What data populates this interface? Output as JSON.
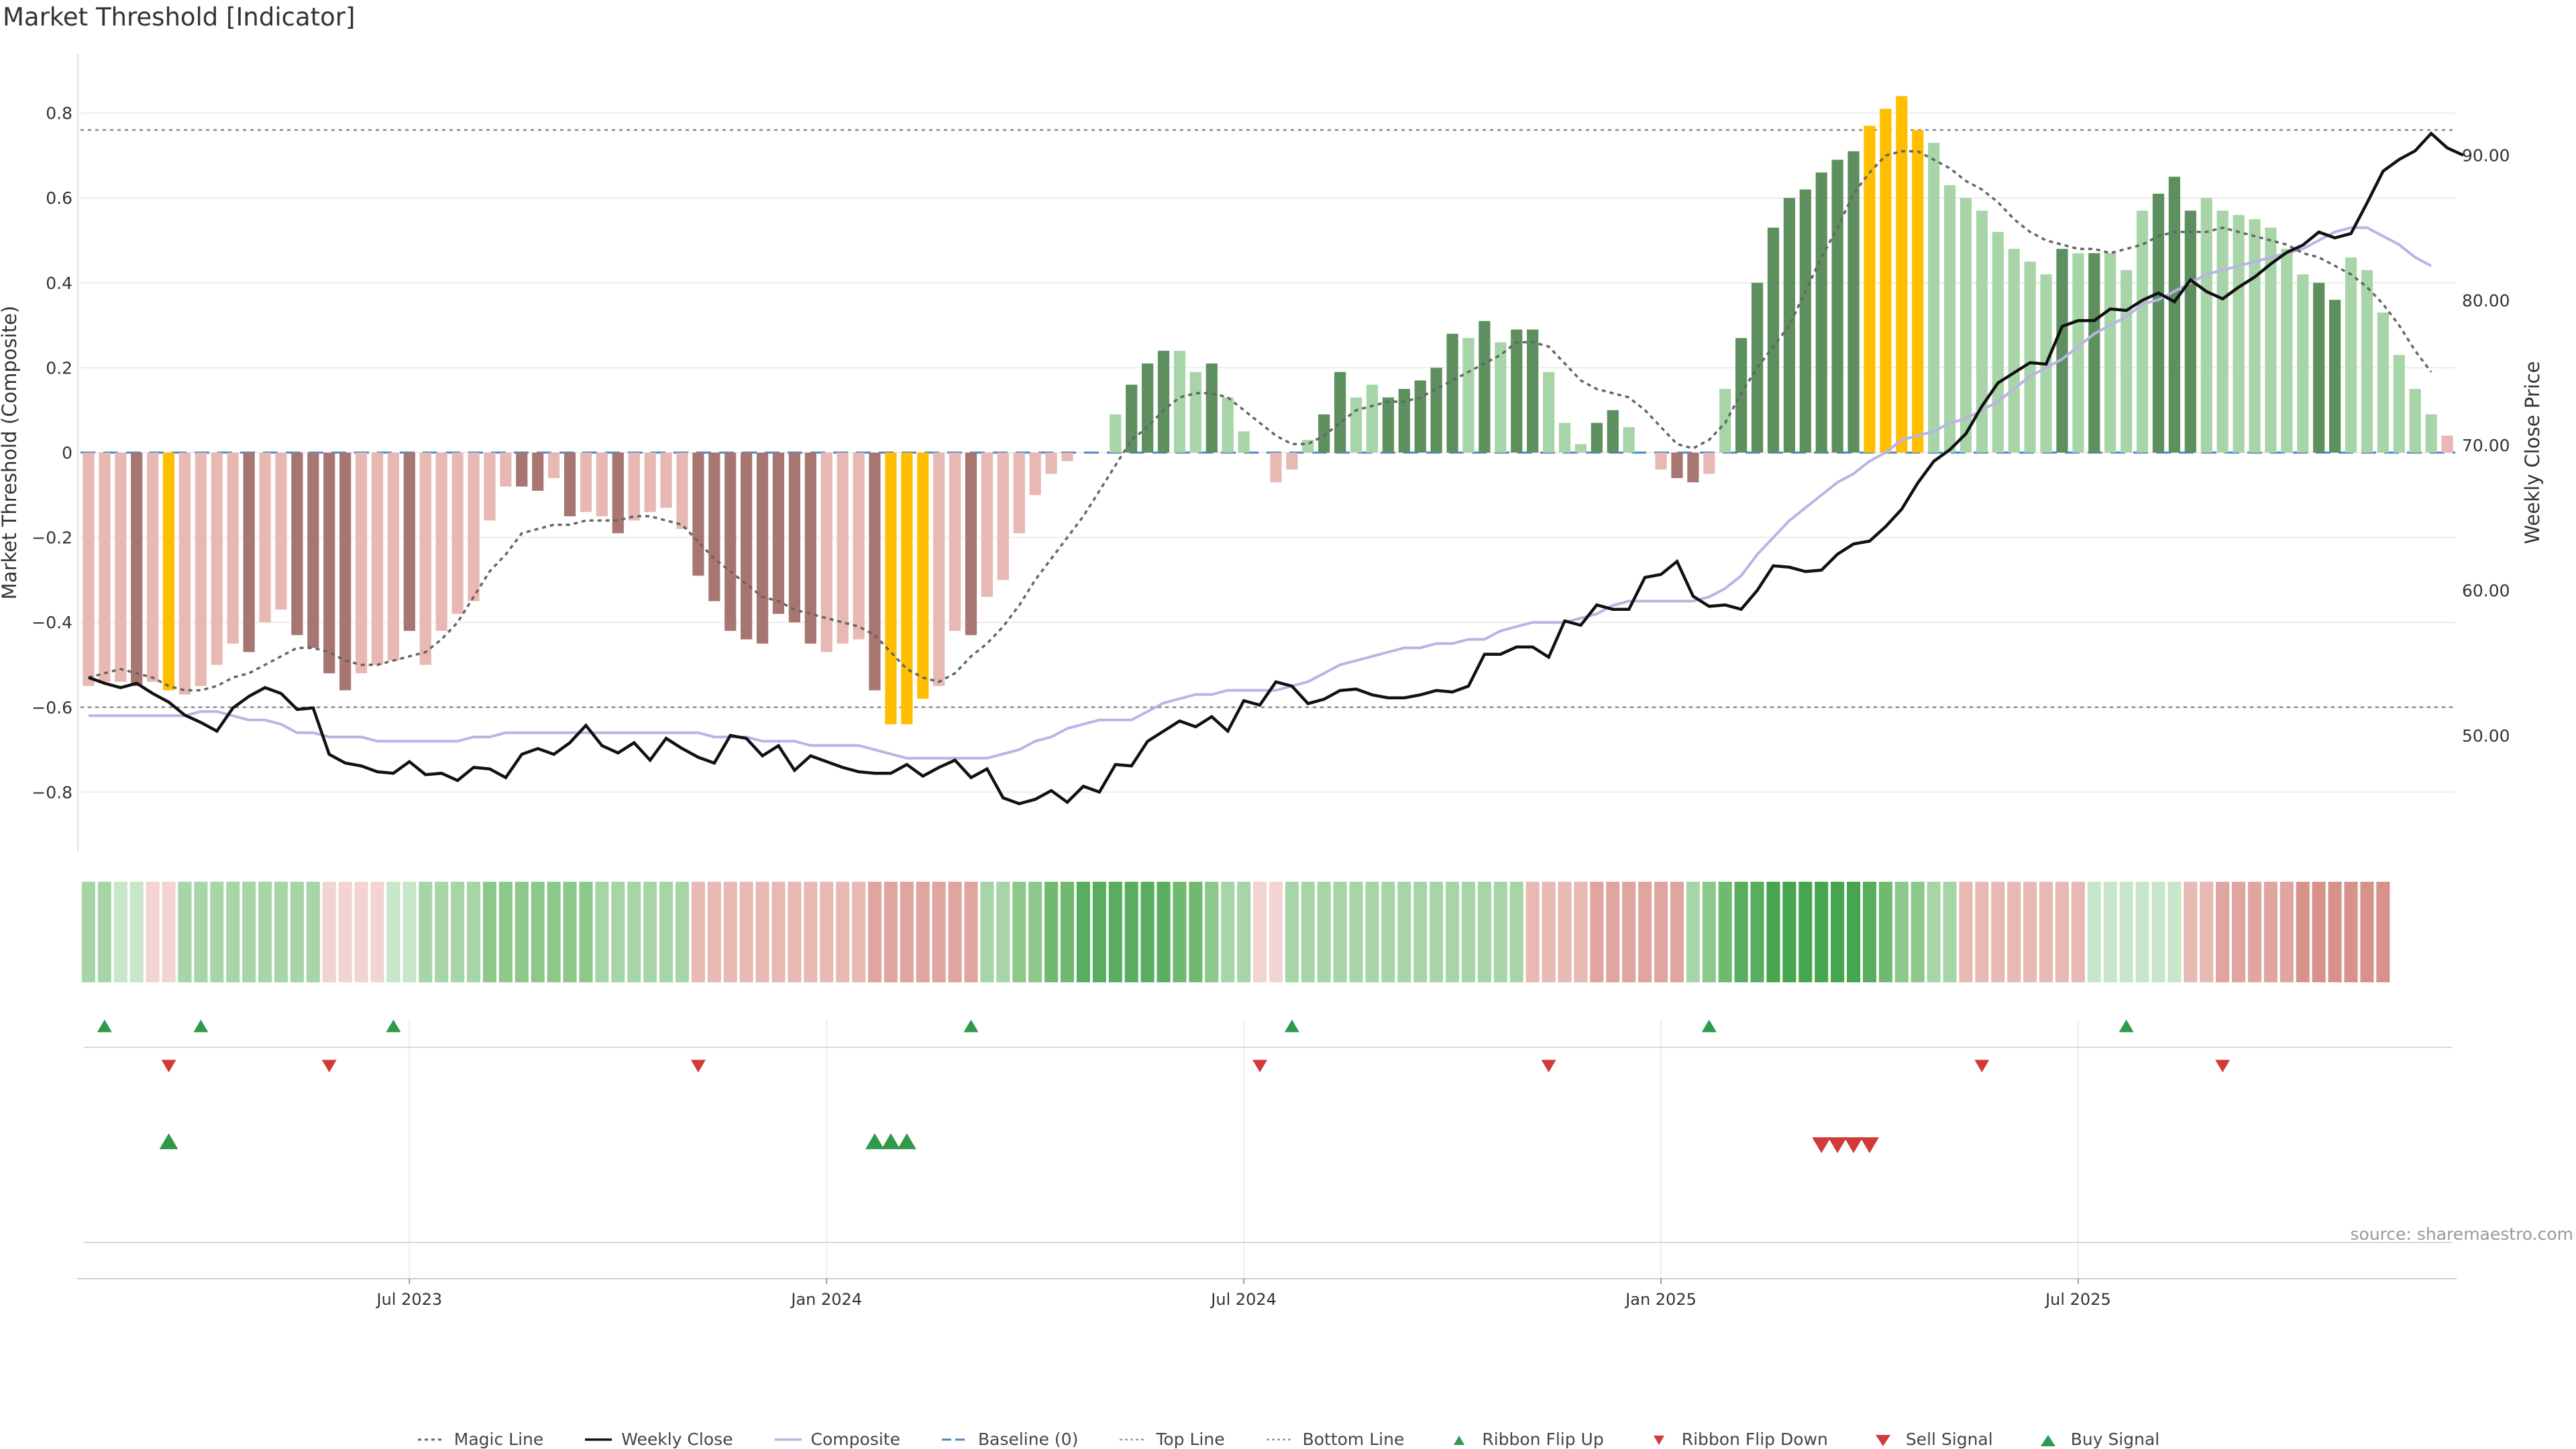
{
  "title": "Market Threshold [Indicator]",
  "source": "source: sharemaestro.com",
  "colors": {
    "dark_green": "#5e8f5e",
    "light_green": "#a8d5a8",
    "dark_red": "#a87670",
    "light_red": "#e8b8b3",
    "gold": "#ffbf00",
    "close": "#111111",
    "composite": "#b9b4e3",
    "magic": "#666666",
    "baseline": "#4a86c5",
    "buy": "#2e9a4a",
    "sell": "#d23a3a"
  },
  "chart_data": {
    "type": "bar",
    "title": "Market Threshold [Indicator]",
    "ylabel": "Market Threshold (Composite)",
    "ylabel_right": "Weekly Close Price",
    "ylim": [
      -0.94,
      0.94
    ],
    "ylim_right": [
      42.0,
      97.0
    ],
    "yticks": [
      "0.8",
      "0.6",
      "0.4",
      "0.2",
      "0",
      "−0.2",
      "−0.4",
      "−0.6",
      "−0.8"
    ],
    "yticks_right": [
      "90.00",
      "80.00",
      "70.00",
      "60.00",
      "50.00"
    ],
    "xticks": [
      "Jul 2023",
      "Jan 2024",
      "Jul 2024",
      "Jan 2025",
      "Jul 2025"
    ],
    "xtick_weeks": [
      20,
      46,
      72,
      98,
      124
    ],
    "top_line": 0.76,
    "bottom_line": -0.6,
    "baseline": 0,
    "bars": [
      -0.55,
      -0.54,
      -0.54,
      -0.55,
      -0.54,
      -0.56,
      -0.57,
      -0.55,
      -0.5,
      -0.45,
      -0.47,
      -0.4,
      -0.37,
      -0.43,
      -0.46,
      -0.52,
      -0.56,
      -0.52,
      -0.5,
      -0.49,
      -0.42,
      -0.5,
      -0.42,
      -0.38,
      -0.35,
      -0.16,
      -0.08,
      -0.08,
      -0.09,
      -0.06,
      -0.15,
      -0.14,
      -0.15,
      -0.19,
      -0.16,
      -0.14,
      -0.13,
      -0.18,
      -0.29,
      -0.35,
      -0.42,
      -0.44,
      -0.45,
      -0.38,
      -0.4,
      -0.45,
      -0.47,
      -0.45,
      -0.44,
      -0.56,
      -0.64,
      -0.64,
      -0.58,
      -0.55,
      -0.42,
      -0.43,
      -0.34,
      -0.3,
      -0.19,
      -0.1,
      -0.05,
      -0.02,
      0,
      0,
      0.09,
      0.16,
      0.21,
      0.24,
      0.24,
      0.19,
      0.21,
      0.13,
      0.05,
      0,
      -0.07,
      -0.04,
      0.03,
      0.09,
      0.19,
      0.13,
      0.16,
      0.13,
      0.15,
      0.17,
      0.2,
      0.28,
      0.27,
      0.31,
      0.26,
      0.29,
      0.29,
      0.19,
      0.07,
      0.02,
      0.07,
      0.1,
      0.06,
      0,
      -0.04,
      -0.06,
      -0.07,
      -0.05,
      0.15,
      0.27,
      0.4,
      0.53,
      0.6,
      0.62,
      0.66,
      0.69,
      0.71,
      0.77,
      0.81,
      0.84,
      0.76,
      0.73,
      0.63,
      0.6,
      0.57,
      0.52,
      0.48,
      0.45,
      0.42,
      0.48,
      0.47,
      0.47,
      0.47,
      0.43,
      0.57,
      0.61,
      0.65,
      0.57,
      0.6,
      0.57,
      0.56,
      0.55,
      0.53,
      0.48,
      0.42,
      0.4,
      0.36,
      0.46,
      0.43,
      0.33,
      0.23,
      0.15,
      0.09,
      0.04
    ],
    "bar_kind": [
      "lr",
      "lr",
      "lr",
      "dr",
      "lr",
      "g",
      "lr",
      "lr",
      "lr",
      "lr",
      "dr",
      "lr",
      "lr",
      "dr",
      "dr",
      "dr",
      "dr",
      "lr",
      "lr",
      "lr",
      "dr",
      "lr",
      "lr",
      "lr",
      "lr",
      "lr",
      "lr",
      "dr",
      "dr",
      "lr",
      "dr",
      "lr",
      "lr",
      "dr",
      "lr",
      "lr",
      "lr",
      "lr",
      "dr",
      "dr",
      "dr",
      "dr",
      "dr",
      "dr",
      "dr",
      "dr",
      "lr",
      "lr",
      "lr",
      "dr",
      "g",
      "g",
      "g",
      "lr",
      "lr",
      "dr",
      "lr",
      "lr",
      "lr",
      "lr",
      "lr",
      "lr",
      "lr",
      "lr",
      "lg",
      "dg",
      "dg",
      "dg",
      "lg",
      "lg",
      "dg",
      "lg",
      "lg",
      "lr",
      "lr",
      "lr",
      "lg",
      "dg",
      "dg",
      "lg",
      "lg",
      "dg",
      "dg",
      "dg",
      "dg",
      "dg",
      "lg",
      "dg",
      "lg",
      "dg",
      "dg",
      "lg",
      "lg",
      "lg",
      "dg",
      "dg",
      "lg",
      "lr",
      "lr",
      "dr",
      "dr",
      "lr",
      "lg",
      "dg",
      "dg",
      "dg",
      "dg",
      "dg",
      "dg",
      "dg",
      "dg",
      "g",
      "g",
      "g",
      "g",
      "lg",
      "lg",
      "lg",
      "lg",
      "lg",
      "lg",
      "lg",
      "lg",
      "dg",
      "lg",
      "dg",
      "lg",
      "lg",
      "lg",
      "dg",
      "dg",
      "dg",
      "lg",
      "lg",
      "lg",
      "lg",
      "lg",
      "lg",
      "lg",
      "dg",
      "dg",
      "lg",
      "lg",
      "lg",
      "lg",
      "lg",
      "lg"
    ],
    "weekly_close": [
      54.0,
      53.6,
      53.3,
      53.6,
      52.9,
      52.3,
      51.4,
      50.9,
      50.3,
      51.9,
      52.7,
      53.3,
      52.9,
      51.8,
      51.9,
      48.7,
      48.1,
      47.9,
      47.5,
      47.4,
      48.2,
      47.3,
      47.4,
      46.9,
      47.8,
      47.7,
      47.1,
      48.7,
      49.1,
      48.7,
      49.5,
      50.7,
      49.3,
      48.8,
      49.5,
      48.3,
      49.8,
      49.1,
      48.5,
      48.1,
      50.0,
      49.8,
      48.6,
      49.3,
      47.6,
      48.6,
      48.2,
      47.8,
      47.5,
      47.4,
      47.4,
      48.0,
      47.2,
      47.8,
      48.3,
      47.1,
      47.7,
      45.7,
      45.3,
      45.6,
      46.2,
      45.4,
      46.5,
      46.1,
      48.0,
      47.9,
      49.6,
      50.3,
      51.0,
      50.6,
      51.3,
      50.3,
      52.4,
      52.1,
      53.7,
      53.4,
      52.2,
      52.5,
      53.1,
      53.2,
      52.8,
      52.6,
      52.6,
      52.8,
      53.1,
      53.0,
      53.4,
      55.6,
      55.6,
      56.1,
      56.1,
      55.4,
      57.9,
      57.6,
      59.0,
      58.7,
      58.7,
      60.9,
      61.1,
      62.0,
      59.6,
      58.9,
      59.0,
      58.7,
      60.0,
      61.7,
      61.6,
      61.3,
      61.4,
      62.5,
      63.2,
      63.4,
      64.4,
      65.6,
      67.4,
      68.9,
      69.7,
      70.8,
      72.7,
      74.3,
      75.0,
      75.7,
      75.6,
      78.2,
      78.6,
      78.6,
      79.4,
      79.3,
      80.0,
      80.5,
      79.9,
      81.4,
      80.6,
      80.1,
      80.9,
      81.6,
      82.5,
      83.3,
      83.8,
      84.7,
      84.3,
      84.6,
      86.7,
      88.9,
      89.7,
      90.3,
      91.5,
      90.5,
      90.0
    ],
    "composite_line": [
      -0.62,
      -0.62,
      -0.62,
      -0.62,
      -0.62,
      -0.62,
      -0.62,
      -0.61,
      -0.61,
      -0.62,
      -0.63,
      -0.63,
      -0.64,
      -0.66,
      -0.66,
      -0.67,
      -0.67,
      -0.67,
      -0.68,
      -0.68,
      -0.68,
      -0.68,
      -0.68,
      -0.68,
      -0.67,
      -0.67,
      -0.66,
      -0.66,
      -0.66,
      -0.66,
      -0.66,
      -0.66,
      -0.66,
      -0.66,
      -0.66,
      -0.66,
      -0.66,
      -0.66,
      -0.66,
      -0.67,
      -0.67,
      -0.67,
      -0.68,
      -0.68,
      -0.68,
      -0.69,
      -0.69,
      -0.69,
      -0.69,
      -0.7,
      -0.71,
      -0.72,
      -0.72,
      -0.72,
      -0.72,
      -0.72,
      -0.72,
      -0.71,
      -0.7,
      -0.68,
      -0.67,
      -0.65,
      -0.64,
      -0.63,
      -0.63,
      -0.63,
      -0.61,
      -0.59,
      -0.58,
      -0.57,
      -0.57,
      -0.56,
      -0.56,
      -0.56,
      -0.56,
      -0.55,
      -0.54,
      -0.52,
      -0.5,
      -0.49,
      -0.48,
      -0.47,
      -0.46,
      -0.46,
      -0.45,
      -0.45,
      -0.44,
      -0.44,
      -0.42,
      -0.41,
      -0.4,
      -0.4,
      -0.4,
      -0.39,
      -0.38,
      -0.36,
      -0.35,
      -0.35,
      -0.35,
      -0.35,
      -0.35,
      -0.34,
      -0.32,
      -0.29,
      -0.24,
      -0.2,
      -0.16,
      -0.13,
      -0.1,
      -0.07,
      -0.05,
      -0.02,
      0,
      0.03,
      0.04,
      0.05,
      0.07,
      0.08,
      0.1,
      0.12,
      0.15,
      0.18,
      0.2,
      0.22,
      0.25,
      0.28,
      0.3,
      0.32,
      0.35,
      0.36,
      0.38,
      0.4,
      0.42,
      0.43,
      0.44,
      0.45,
      0.46,
      0.47,
      0.48,
      0.5,
      0.52,
      0.53,
      0.53,
      0.51,
      0.49,
      0.46,
      0.44
    ],
    "magic_line": [
      -0.53,
      -0.52,
      -0.51,
      -0.52,
      -0.53,
      -0.55,
      -0.56,
      -0.56,
      -0.55,
      -0.53,
      -0.52,
      -0.5,
      -0.48,
      -0.46,
      -0.46,
      -0.47,
      -0.49,
      -0.5,
      -0.5,
      -0.49,
      -0.48,
      -0.47,
      -0.44,
      -0.4,
      -0.34,
      -0.28,
      -0.24,
      -0.19,
      -0.18,
      -0.17,
      -0.17,
      -0.16,
      -0.16,
      -0.16,
      -0.15,
      -0.15,
      -0.16,
      -0.17,
      -0.21,
      -0.25,
      -0.28,
      -0.31,
      -0.34,
      -0.35,
      -0.37,
      -0.38,
      -0.39,
      -0.4,
      -0.41,
      -0.43,
      -0.47,
      -0.51,
      -0.53,
      -0.54,
      -0.52,
      -0.48,
      -0.45,
      -0.41,
      -0.36,
      -0.3,
      -0.25,
      -0.2,
      -0.15,
      -0.09,
      -0.03,
      0.03,
      0.06,
      0.1,
      0.13,
      0.14,
      0.14,
      0.13,
      0.1,
      0.07,
      0.04,
      0.02,
      0.02,
      0.04,
      0.07,
      0.1,
      0.11,
      0.12,
      0.12,
      0.13,
      0.15,
      0.17,
      0.19,
      0.21,
      0.23,
      0.26,
      0.26,
      0.25,
      0.21,
      0.17,
      0.15,
      0.14,
      0.13,
      0.1,
      0.06,
      0.02,
      0.01,
      0.03,
      0.07,
      0.14,
      0.2,
      0.25,
      0.3,
      0.38,
      0.46,
      0.53,
      0.61,
      0.66,
      0.7,
      0.71,
      0.71,
      0.69,
      0.67,
      0.64,
      0.62,
      0.59,
      0.55,
      0.52,
      0.5,
      0.49,
      0.48,
      0.48,
      0.47,
      0.48,
      0.49,
      0.51,
      0.52,
      0.52,
      0.52,
      0.53,
      0.52,
      0.51,
      0.5,
      0.49,
      0.47,
      0.46,
      0.44,
      0.42,
      0.39,
      0.35,
      0.3,
      0.24,
      0.19
    ],
    "ribbon": [
      "#a8d5a8",
      "#a8d5a8",
      "#c8e6c8",
      "#c8e6c8",
      "#f2d4d2",
      "#f2d4d2",
      "#a8d5a8",
      "#a8d5a8",
      "#a8d5a8",
      "#a8d5a8",
      "#a8d5a8",
      "#a8d5a8",
      "#a8d5a8",
      "#a8d5a8",
      "#a8d5a8",
      "#f2d4d2",
      "#f2d4d2",
      "#f2d4d2",
      "#f2d4d2",
      "#c8e6c8",
      "#c8e6c8",
      "#a8d5a8",
      "#a8d5a8",
      "#a8d5a8",
      "#a8d5a8",
      "#8cc88c",
      "#8cc88c",
      "#8cc88c",
      "#8cc88c",
      "#8cc88c",
      "#8cc88c",
      "#8cc88c",
      "#a8d5a8",
      "#a8d5a8",
      "#a8d5a8",
      "#a8d5a8",
      "#a8d5a8",
      "#a8d5a8",
      "#e8b8b3",
      "#e8b8b3",
      "#e8b8b3",
      "#e8b8b3",
      "#e8b8b3",
      "#e8b8b3",
      "#e8b8b3",
      "#e8b8b3",
      "#e8b8b3",
      "#e8b8b3",
      "#e8b8b3",
      "#e0a5a0",
      "#e0a5a0",
      "#e0a5a0",
      "#e0a5a0",
      "#e0a5a0",
      "#e0a5a0",
      "#e0a5a0",
      "#a8d5a8",
      "#a8d5a8",
      "#8cc88c",
      "#8cc88c",
      "#6fba6f",
      "#6fba6f",
      "#58ae5e",
      "#58ae5e",
      "#58ae5e",
      "#58ae5e",
      "#58ae5e",
      "#58ae5e",
      "#6fba6f",
      "#6fba6f",
      "#8cc88c",
      "#a8d5a8",
      "#a8d5a8",
      "#f2d4d2",
      "#f2d4d2",
      "#a8d5a8",
      "#a8d5a8",
      "#a8d5a8",
      "#a8d5a8",
      "#a8d5a8",
      "#a8d5a8",
      "#a8d5a8",
      "#a8d5a8",
      "#a8d5a8",
      "#a8d5a8",
      "#a8d5a8",
      "#a8d5a8",
      "#a8d5a8",
      "#a8d5a8",
      "#a8d5a8",
      "#e8b8b3",
      "#e8b8b3",
      "#e8b8b3",
      "#e8b8b3",
      "#e0a5a0",
      "#e0a5a0",
      "#e0a5a0",
      "#e0a5a0",
      "#e0a5a0",
      "#e0a5a0",
      "#a8d5a8",
      "#8cc88c",
      "#6fba6f",
      "#58ae5e",
      "#58ae5e",
      "#46a54f",
      "#46a54f",
      "#46a54f",
      "#46a54f",
      "#46a54f",
      "#46a54f",
      "#58ae5e",
      "#6fba6f",
      "#8cc88c",
      "#8cc88c",
      "#a8d5a8",
      "#a8d5a8",
      "#e8b8b3",
      "#e8b8b3",
      "#e8b8b3",
      "#e8b8b3",
      "#e8b8b3",
      "#e8b8b3",
      "#e8b8b3",
      "#e8b8b3",
      "#c8e6c8",
      "#c8e6c8",
      "#c8e6c8",
      "#c8e6c8",
      "#c8e6c8",
      "#c8e6c8",
      "#e8b8b3",
      "#e8b8b3",
      "#e0a5a0",
      "#e0a5a0",
      "#e0a5a0",
      "#e0a5a0",
      "#e0a5a0",
      "#d8928c",
      "#d8928c",
      "#d8928c",
      "#d8928c",
      "#d8928c",
      "#d8928c"
    ],
    "ribbon_flip_up_weeks": [
      1,
      7,
      19,
      55,
      75,
      101,
      127
    ],
    "ribbon_flip_down_weeks": [
      5,
      15,
      38,
      73,
      91,
      118,
      133
    ],
    "buy_signal_weeks": [
      5,
      49,
      50,
      51
    ],
    "sell_signal_weeks": [
      108,
      109,
      110,
      111
    ]
  },
  "legend": [
    {
      "key": "magic",
      "label": "Magic Line"
    },
    {
      "key": "close",
      "label": "Weekly Close"
    },
    {
      "key": "composite",
      "label": "Composite"
    },
    {
      "key": "baseline",
      "label": "Baseline (0)"
    },
    {
      "key": "top",
      "label": "Top Line"
    },
    {
      "key": "bottom",
      "label": "Bottom Line"
    },
    {
      "key": "flip_up",
      "label": "Ribbon Flip Up"
    },
    {
      "key": "flip_down",
      "label": "Ribbon Flip Down"
    },
    {
      "key": "sell",
      "label": "Sell Signal"
    },
    {
      "key": "buy",
      "label": "Buy Signal"
    }
  ]
}
